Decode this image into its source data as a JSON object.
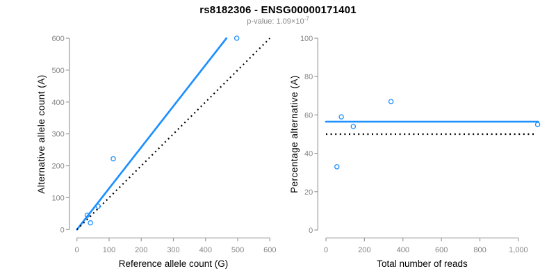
{
  "header": {
    "title": "rs8182306 - ENSG00000171401",
    "subtitle_prefix": "p-value: 1.09×10",
    "subtitle_exponent": "-7"
  },
  "colors": {
    "accent_blue": "#1e90ff",
    "dotted_black": "#000000",
    "axis_gray": "#9a9a9a",
    "tick_label_gray": "#858585",
    "axis_label_black": "#000000",
    "title_black": "#000000",
    "subtitle_gray": "#878787",
    "background": "#ffffff"
  },
  "chart_data": [
    {
      "type": "scatter",
      "panel": "left",
      "marker": "open-circle",
      "xlabel": "Reference allele count (G)",
      "ylabel": "Alternative allele count (A)",
      "xlim": [
        0,
        600
      ],
      "ylim": [
        0,
        600
      ],
      "grid": false,
      "legend": "none",
      "xticks": [
        0,
        100,
        200,
        300,
        400,
        500,
        600
      ],
      "xtick_labels": [
        "0",
        "100",
        "200",
        "300",
        "400",
        "500",
        "600"
      ],
      "yticks": [
        0,
        100,
        200,
        300,
        400,
        500,
        600
      ],
      "ytick_labels": [
        "0",
        "100",
        "200",
        "300",
        "400",
        "500",
        "600"
      ],
      "points": [
        [
          32,
          45
        ],
        [
          42,
          21
        ],
        [
          66,
          73
        ],
        [
          113,
          222
        ],
        [
          497,
          600
        ]
      ],
      "lines": [
        {
          "name": "fit",
          "style": "solid",
          "color": "#1e90ff",
          "x1": 0,
          "y1": 0,
          "x2": 465,
          "y2": 600
        },
        {
          "name": "identity",
          "style": "dotted",
          "color": "#000000",
          "x1": 0,
          "y1": 0,
          "x2": 600,
          "y2": 600
        }
      ]
    },
    {
      "type": "scatter",
      "panel": "right",
      "marker": "open-circle",
      "xlabel": "Total number of reads",
      "ylabel": "Percentage alternative (A)",
      "xlim": [
        0,
        1100
      ],
      "ylim": [
        0,
        100
      ],
      "grid": false,
      "legend": "none",
      "xticks": [
        0,
        200,
        400,
        600,
        800,
        1000
      ],
      "xtick_labels": [
        "0",
        "200",
        "400",
        "600",
        "800",
        "1,000"
      ],
      "yticks": [
        0,
        20,
        40,
        60,
        80,
        100
      ],
      "ytick_labels": [
        "0",
        "20",
        "40",
        "60",
        "80",
        "100"
      ],
      "points": [
        [
          57,
          33
        ],
        [
          80,
          59
        ],
        [
          142,
          54
        ],
        [
          338,
          67
        ],
        [
          1100,
          55
        ]
      ],
      "lines": [
        {
          "name": "mean-percentage",
          "style": "solid",
          "color": "#1e90ff",
          "x1": 0,
          "y1": 56.5,
          "x2": 1103,
          "y2": 56.5
        },
        {
          "name": "expected-50pct",
          "style": "dotted",
          "color": "#000000",
          "x1": 0,
          "y1": 50,
          "x2": 1085,
          "y2": 50
        }
      ]
    }
  ]
}
